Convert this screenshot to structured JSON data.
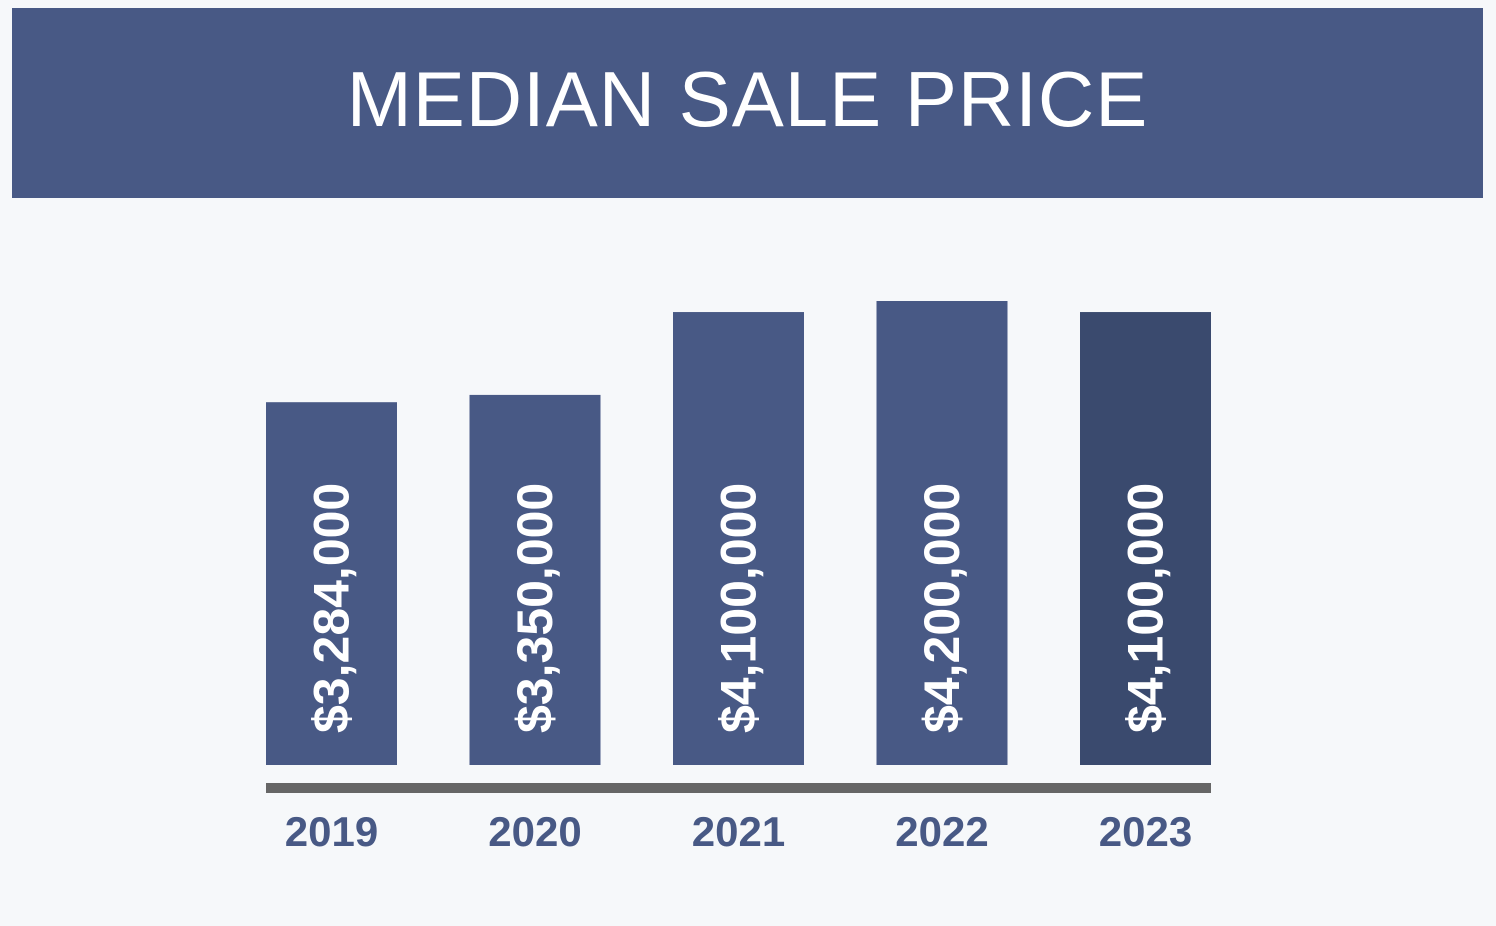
{
  "colors": {
    "banner_bg": "#485985",
    "banner_text": "#ffffff",
    "bar": "#485985",
    "bar_highlight": "#3a4a6e",
    "bar_label": "#ffffff",
    "baseline": "#666666",
    "year_label": "#485985"
  },
  "chart_data": {
    "type": "bar",
    "title": "MEDIAN SALE PRICE",
    "categories": [
      "2019",
      "2020",
      "2021",
      "2022",
      "2023"
    ],
    "values": [
      3284000,
      3350000,
      4100000,
      4200000,
      4100000
    ],
    "value_labels": [
      "$3,284,000",
      "$3,350,000",
      "$4,100,000",
      "$4,200,000",
      "$4,100,000"
    ],
    "highlight_index": 4,
    "ylim": [
      0,
      5250000
    ],
    "grid": false,
    "legend": "none"
  }
}
